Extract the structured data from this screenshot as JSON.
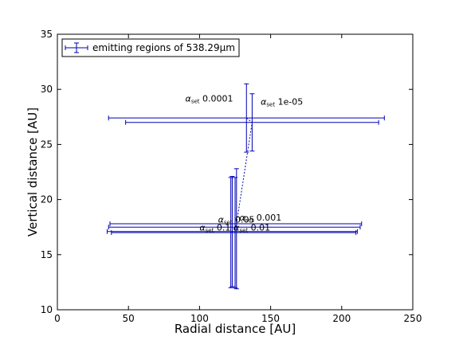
{
  "chart_data": {
    "type": "scatter",
    "title": "",
    "xlabel": "Radial distance [AU]",
    "ylabel": "Vertical distance [AU]",
    "xlim": [
      0,
      250
    ],
    "ylim": [
      10,
      35
    ],
    "xticks": [
      0,
      50,
      100,
      150,
      200,
      250
    ],
    "yticks": [
      10,
      15,
      20,
      25,
      30,
      35
    ],
    "grid": false,
    "legend_position": "top-left",
    "series": [
      {
        "name": "emitting regions of 538.29μm",
        "color": "#0000b3",
        "points": [
          {
            "x": 133,
            "y": 27.4,
            "xerr": [
              97,
              97
            ],
            "yerr": [
              3.1,
              3.1
            ]
          },
          {
            "x": 137,
            "y": 27.0,
            "xerr": [
              89,
              89
            ],
            "yerr": [
              2.6,
              2.6
            ]
          },
          {
            "x": 126,
            "y": 17.8,
            "xerr": [
              89,
              88
            ],
            "yerr": [
              5.9,
              5.0
            ]
          },
          {
            "x": 125,
            "y": 17.5,
            "xerr": [
              89,
              88
            ],
            "yerr": [
              5.5,
              4.5
            ]
          },
          {
            "x": 123,
            "y": 17.1,
            "xerr": [
              88,
              88
            ],
            "yerr": [
              5.0,
              5.0
            ]
          },
          {
            "x": 122,
            "y": 17.0,
            "xerr": [
              84,
              88
            ],
            "yerr": [
              5.0,
              5.0
            ]
          }
        ]
      }
    ],
    "annotations": [
      {
        "sub": "set",
        "value": "0.0001",
        "x": 90,
        "y": 28.9
      },
      {
        "sub": "set",
        "value": "1e-05",
        "x": 143,
        "y": 28.6
      },
      {
        "sub": "set",
        "value": "0.05",
        "x": 113,
        "y": 17.9
      },
      {
        "sub": "set",
        "value": "0.001",
        "x": 128,
        "y": 18.1
      },
      {
        "sub": "set",
        "value": "0.1",
        "x": 100,
        "y": 17.2
      },
      {
        "sub": "set",
        "value": "0.01",
        "x": 124,
        "y": 17.2
      }
    ]
  }
}
